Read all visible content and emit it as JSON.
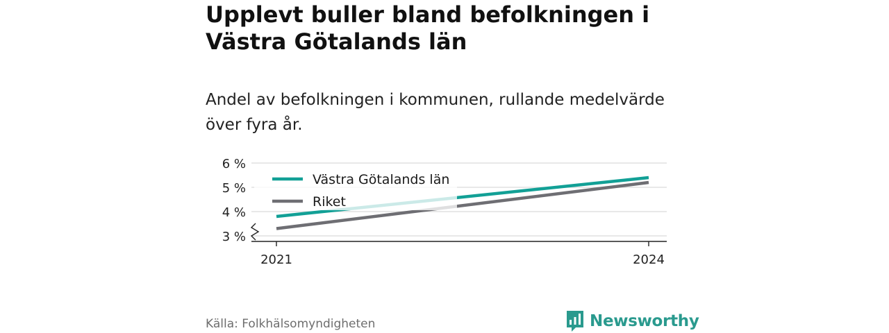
{
  "title": "Upplevt buller bland befolkningen i Västra Götalands län",
  "subtitle": "Andel av befolkningen i kommunen, rullande medelvärde över fyra år.",
  "source": "Källa: Folkhälsomyndigheten",
  "brand": "Newsworthy",
  "colors": {
    "vgl": "#12a096",
    "riket": "#6e6e73",
    "grid": "#d9d9d9",
    "axis": "#222222"
  },
  "chart_data": {
    "type": "line",
    "x": [
      2021,
      2024
    ],
    "x_tick_labels": [
      "2021",
      "2024"
    ],
    "y_tick_labels": [
      "3 %",
      "4 %",
      "5 %",
      "6 %"
    ],
    "y_ticks": [
      3,
      4,
      5,
      6
    ],
    "ylim": [
      3,
      6
    ],
    "y_axis_break": true,
    "grid": true,
    "legend_position": "top-left",
    "series": [
      {
        "name": "Västra Götalands län",
        "values": [
          3.8,
          5.4
        ]
      },
      {
        "name": "Riket",
        "values": [
          3.3,
          5.2
        ]
      }
    ]
  }
}
